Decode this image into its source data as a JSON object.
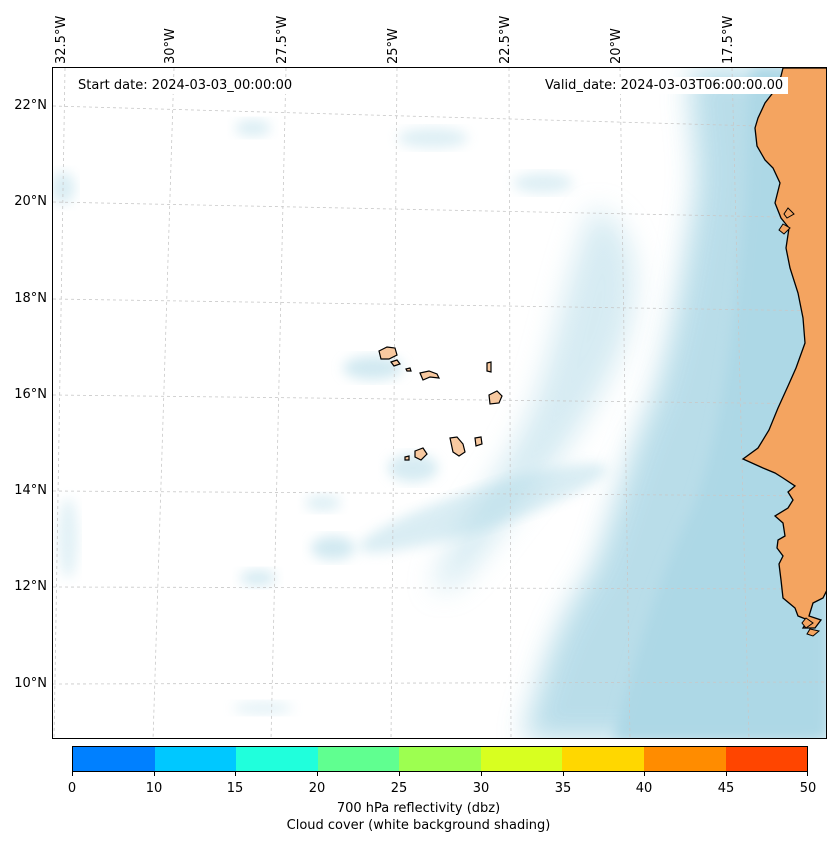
{
  "map": {
    "start_date": "Start date: 2024-03-03_00:00:00",
    "valid_date": "Valid_date: 2024-03-03T06:00:00.00",
    "lon_labels": [
      "32.5°W",
      "30°W",
      "27.5°W",
      "25°W",
      "22.5°W",
      "20°W",
      "17.5°W"
    ],
    "lat_labels": [
      "22°N",
      "20°N",
      "18°N",
      "16°N",
      "14°N",
      "12°N",
      "10°N"
    ],
    "colors": {
      "land": "#f4a460",
      "island_land": "#f8c9a0",
      "cloud": "#add8e6",
      "gridline": "#c8c8c8",
      "coastline": "#000000"
    }
  },
  "colorbar": {
    "label_line1": "700 hPa reflectivity (dbz)",
    "label_line2": "Cloud cover (white background shading)",
    "ticks": [
      "0",
      "10",
      "15",
      "20",
      "25",
      "30",
      "35",
      "40",
      "45",
      "50"
    ],
    "colors": [
      "#0080ff",
      "#00c8ff",
      "#20ffdc",
      "#60ff90",
      "#9dff50",
      "#d8ff20",
      "#ffd700",
      "#ff8c00",
      "#ff4500"
    ]
  }
}
